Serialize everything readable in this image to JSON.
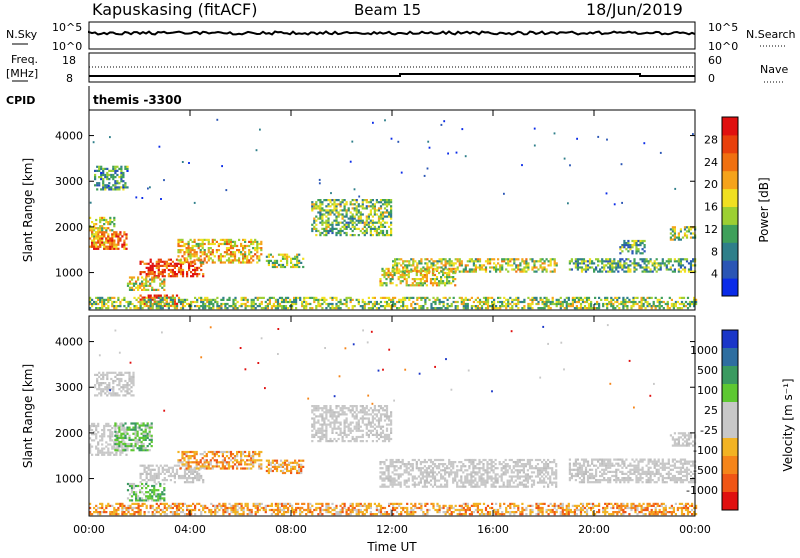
{
  "header": {
    "station": "Kapuskasing (fitACF)",
    "beam": "Beam 15",
    "date": "18/Jun/2019"
  },
  "panels": {
    "nsky_label": "N.Sky",
    "nsky_ticks": [
      "10^5",
      "10^0"
    ],
    "nsearch_label": "N.Search",
    "nsearch_ticks": [
      "10^5",
      "10^0"
    ],
    "freq_label_1": "Freq.",
    "freq_label_2": "[MHz]",
    "freq_ticks": [
      "18",
      "8"
    ],
    "nave_label": "Nave",
    "nave_ticks": [
      "60",
      "0"
    ],
    "cpid_label": "CPID",
    "cpid_value": "themis -3300"
  },
  "chart_data": [
    {
      "type": "heatmap",
      "name": "power",
      "ylabel": "Slant Range [km]",
      "xlabel": "Time UT",
      "x_ticks": [
        "00:00",
        "04:00",
        "08:00",
        "12:00",
        "16:00",
        "20:00",
        "00:00"
      ],
      "xlim_hours": [
        0,
        24
      ],
      "y_ticks": [
        1000,
        2000,
        3000,
        4000
      ],
      "ylim": [
        180,
        4560
      ],
      "colorbar": {
        "label": "Power [dB]",
        "ticks": [
          4,
          8,
          12,
          16,
          20,
          24,
          28
        ],
        "range": [
          0,
          32
        ],
        "colors": [
          "#0a2be8",
          "#2a55b5",
          "#2f7f8a",
          "#3fa05a",
          "#9ccf32",
          "#f0e020",
          "#f5a31a",
          "#f07010",
          "#e8400c",
          "#e01010"
        ]
      },
      "regions": [
        {
          "t": [
            0.0,
            1.0
          ],
          "r": [
            1500,
            2200
          ],
          "level": 0.55
        },
        {
          "t": [
            0.0,
            1.5
          ],
          "r": [
            1500,
            1900
          ],
          "level": 0.75
        },
        {
          "t": [
            2.0,
            4.5
          ],
          "r": [
            900,
            1300
          ],
          "level": 0.85
        },
        {
          "t": [
            3.5,
            6.8
          ],
          "r": [
            1200,
            1700
          ],
          "level": 0.6
        },
        {
          "t": [
            0.2,
            1.5
          ],
          "r": [
            2800,
            3300
          ],
          "level": 0.3
        },
        {
          "t": [
            1.5,
            3.0
          ],
          "r": [
            600,
            900
          ],
          "level": 0.5
        },
        {
          "t": [
            2.0,
            3.5
          ],
          "r": [
            250,
            500
          ],
          "level": 0.9
        },
        {
          "t": [
            7.0,
            8.5
          ],
          "r": [
            1100,
            1400
          ],
          "level": 0.45
        },
        {
          "t": [
            8.8,
            12.0
          ],
          "r": [
            1800,
            2600
          ],
          "level": 0.4
        },
        {
          "t": [
            11.5,
            14.5
          ],
          "r": [
            700,
            1100
          ],
          "level": 0.55
        },
        {
          "t": [
            12.0,
            18.5
          ],
          "r": [
            1000,
            1300
          ],
          "level": 0.5
        },
        {
          "t": [
            19.0,
            24.0
          ],
          "r": [
            1000,
            1300
          ],
          "level": 0.35
        },
        {
          "t": [
            21.0,
            22.0
          ],
          "r": [
            1400,
            1700
          ],
          "level": 0.35
        },
        {
          "t": [
            23.0,
            24.0
          ],
          "r": [
            1700,
            2000
          ],
          "level": 0.45
        },
        {
          "t": [
            0.0,
            24.0
          ],
          "r": [
            200,
            450
          ],
          "level": 0.45
        }
      ]
    },
    {
      "type": "heatmap",
      "name": "velocity",
      "ylabel": "Slant Range [km]",
      "xlabel": "Time UT",
      "x_ticks": [
        "00:00",
        "04:00",
        "08:00",
        "12:00",
        "16:00",
        "20:00",
        "00:00"
      ],
      "xlim_hours": [
        0,
        24
      ],
      "y_ticks": [
        1000,
        2000,
        3000,
        4000
      ],
      "ylim": [
        180,
        4560
      ],
      "colorbar": {
        "label": "Velocity [m s⁻¹]",
        "ticks": [
          "1000",
          "500",
          "100",
          "25",
          "-25",
          "-100",
          "-500",
          "-1000"
        ],
        "colors": [
          "#1a36c8",
          "#2e6ea0",
          "#3a9a60",
          "#5ec832",
          "#c8c8c8",
          "#c8c8c8",
          "#f2b323",
          "#f5851a",
          "#f05515",
          "#e01010"
        ]
      },
      "regions": [
        {
          "t": [
            0.0,
            1.5
          ],
          "r": [
            1500,
            2200
          ],
          "kind": "grey"
        },
        {
          "t": [
            1.0,
            2.5
          ],
          "r": [
            1600,
            2200
          ],
          "kind": "green"
        },
        {
          "t": [
            2.0,
            4.5
          ],
          "r": [
            900,
            1300
          ],
          "kind": "grey"
        },
        {
          "t": [
            3.5,
            6.8
          ],
          "r": [
            1200,
            1600
          ],
          "kind": "orange"
        },
        {
          "t": [
            1.5,
            3.0
          ],
          "r": [
            500,
            900
          ],
          "kind": "green"
        },
        {
          "t": [
            0.2,
            1.8
          ],
          "r": [
            2800,
            3300
          ],
          "kind": "grey"
        },
        {
          "t": [
            7.0,
            8.5
          ],
          "r": [
            1100,
            1400
          ],
          "kind": "orange"
        },
        {
          "t": [
            8.8,
            12.0
          ],
          "r": [
            1800,
            2600
          ],
          "kind": "grey"
        },
        {
          "t": [
            11.5,
            18.5
          ],
          "r": [
            800,
            1400
          ],
          "kind": "grey"
        },
        {
          "t": [
            19.0,
            24.0
          ],
          "r": [
            900,
            1400
          ],
          "kind": "grey"
        },
        {
          "t": [
            23.0,
            24.0
          ],
          "r": [
            1700,
            2000
          ],
          "kind": "grey"
        },
        {
          "t": [
            0.0,
            24.0
          ],
          "r": [
            200,
            450
          ],
          "kind": "orange"
        }
      ]
    }
  ]
}
